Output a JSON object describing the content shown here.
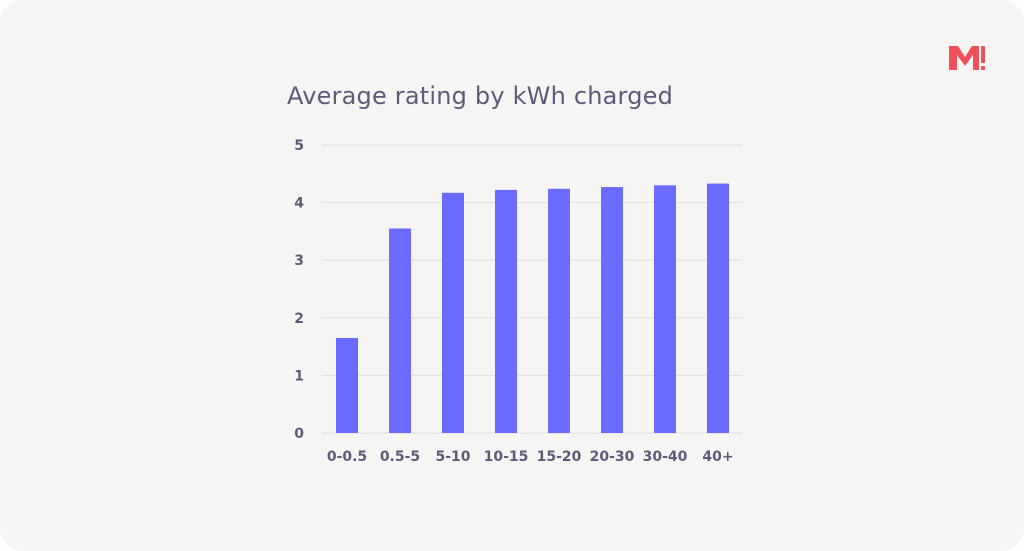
{
  "brand": {
    "logo_text": "M!",
    "logo_color": "#f0505a"
  },
  "chart_data": {
    "type": "bar",
    "title": "Average rating by kWh charged",
    "xlabel": "",
    "ylabel": "",
    "categories": [
      "0-0.5",
      "0.5-5",
      "5-10",
      "10-15",
      "15-20",
      "20-30",
      "30-40",
      "40+"
    ],
    "values": [
      1.65,
      3.55,
      4.17,
      4.22,
      4.24,
      4.27,
      4.3,
      4.33
    ],
    "ylim": [
      0,
      5
    ],
    "yticks": [
      0,
      1,
      2,
      3,
      4,
      5
    ],
    "grid": true,
    "legend": "none",
    "bar_color": "#6b6bff"
  }
}
